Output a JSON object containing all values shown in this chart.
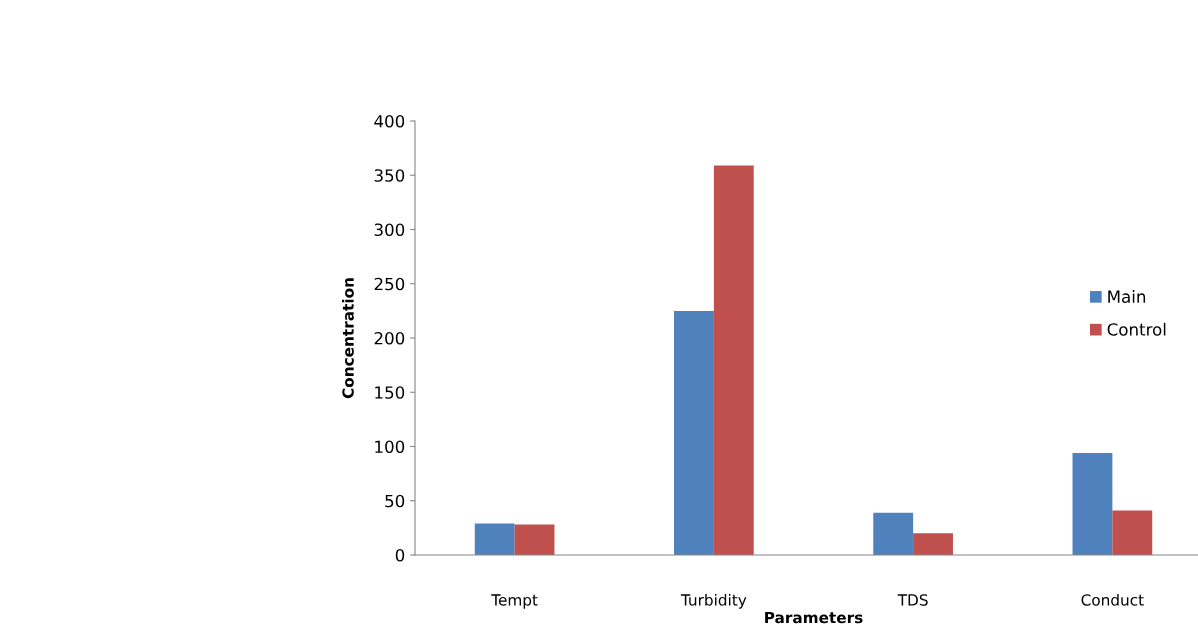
{
  "chart_data": {
    "type": "bar",
    "xlabel": "Parameters",
    "ylabel": "Concentration",
    "categories": [
      "Tempt",
      "Turbidity",
      "TDS",
      "Conduct"
    ],
    "series": [
      {
        "name": "Main",
        "color": "#4f81bd",
        "values": [
          29,
          225,
          39,
          94
        ]
      },
      {
        "name": "Control",
        "color": "#c0504d",
        "values": [
          28,
          359,
          20,
          41
        ]
      }
    ],
    "ylim": [
      0,
      400
    ],
    "yticks": [
      0,
      50,
      100,
      150,
      200,
      250,
      300,
      350,
      400
    ],
    "grid": false,
    "legend": "right"
  }
}
